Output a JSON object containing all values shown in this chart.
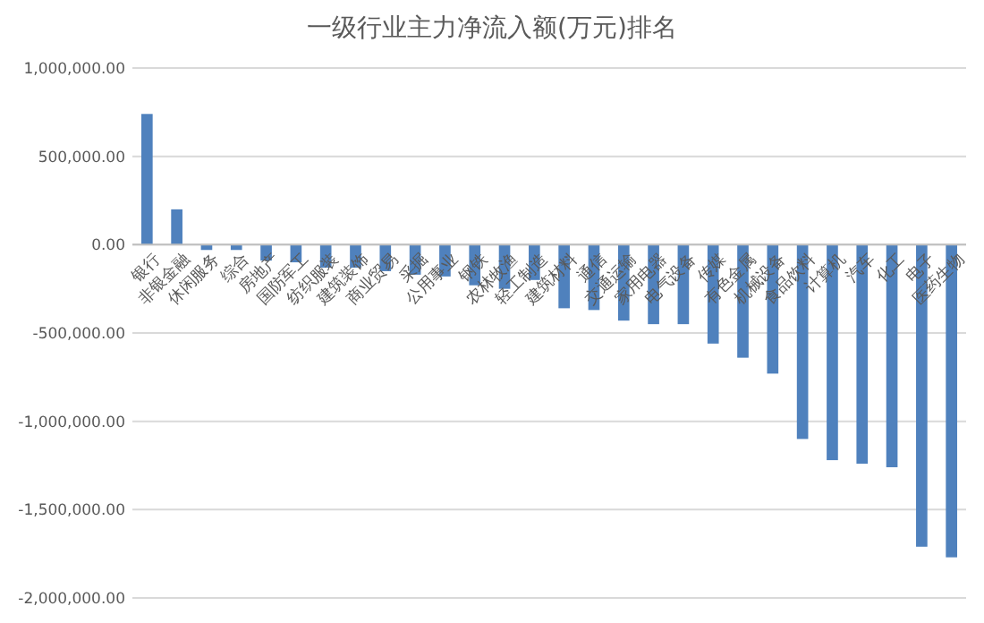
{
  "chart_data": {
    "type": "bar",
    "title": "一级行业主力净流入额(万元)排名",
    "categories": [
      "银行",
      "非银金融",
      "休闲服务",
      "综合",
      "房地产",
      "国防军工",
      "纺织服装",
      "建筑装饰",
      "商业贸易",
      "采掘",
      "公用事业",
      "钢铁",
      "农林牧渔",
      "轻工制造",
      "建筑材料",
      "通信",
      "交通运输",
      "家用电器",
      "电气设备",
      "传媒",
      "有色金属",
      "机械设备",
      "食品饮料",
      "计算机",
      "汽车",
      "化工",
      "电子",
      "医药生物"
    ],
    "values": [
      740000,
      200000,
      -30000,
      -30000,
      -90000,
      -100000,
      -130000,
      -130000,
      -150000,
      -170000,
      -180000,
      -230000,
      -250000,
      -200000,
      -360000,
      -370000,
      -430000,
      -450000,
      -450000,
      -560000,
      -640000,
      -730000,
      -1100000,
      -1220000,
      -1240000,
      -1260000,
      -1710000,
      -1770000
    ],
    "color": "#4f81bd",
    "ylim": [
      -2000000,
      1000000
    ],
    "yticks": [
      {
        "value": -2000000,
        "label": "-2,000,000.00"
      },
      {
        "value": -1500000,
        "label": "-1,500,000.00"
      },
      {
        "value": -1000000,
        "label": "-1,000,000.00"
      },
      {
        "value": -500000,
        "label": "-500,000.00"
      },
      {
        "value": 0,
        "label": "0.00"
      },
      {
        "value": 500000,
        "label": "500,000.00"
      },
      {
        "value": 1000000,
        "label": "1,000,000.00"
      }
    ],
    "grid": "y"
  }
}
